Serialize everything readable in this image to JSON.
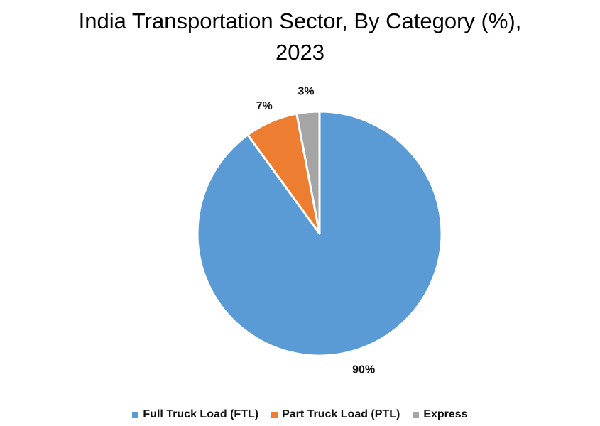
{
  "chart_data": {
    "type": "pie",
    "title_line1": "India Transportation Sector, By Category (%),",
    "title_line2": "2023",
    "categories": [
      "Full Truck Load (FTL)",
      "Part Truck Load (PTL)",
      "Express"
    ],
    "values": [
      90,
      7,
      3
    ],
    "data_labels": [
      "90%",
      "7%",
      "3%"
    ],
    "colors": [
      "#5B9BD5",
      "#ED7D31",
      "#A5A5A5"
    ],
    "legend_position": "bottom",
    "start": "top, clockwise"
  }
}
